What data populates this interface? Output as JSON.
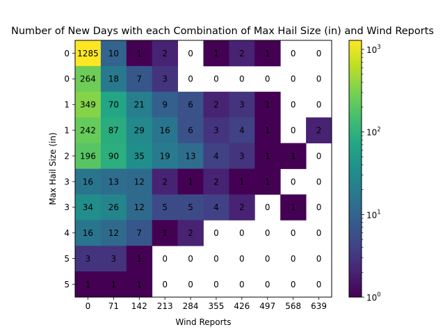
{
  "chart_data": {
    "type": "heatmap",
    "title": "Number of New Days with each Combination of Max Hail Size (in) and Wind Reports",
    "xlabel": "Wind Reports",
    "ylabel": "Max Hail Size (in)",
    "x_tick_labels": [
      "0",
      "71",
      "142",
      "213",
      "284",
      "355",
      "426",
      "497",
      "568",
      "639"
    ],
    "y_tick_labels": [
      "0",
      "0",
      "1",
      "1",
      "2",
      "3",
      "3",
      "4",
      "5",
      "5"
    ],
    "values": [
      [
        1285,
        10,
        1,
        2,
        0,
        1,
        2,
        1,
        0,
        0
      ],
      [
        264,
        18,
        7,
        3,
        0,
        0,
        0,
        0,
        0,
        0
      ],
      [
        349,
        70,
        21,
        9,
        6,
        2,
        3,
        1,
        0,
        0
      ],
      [
        242,
        87,
        29,
        16,
        6,
        3,
        4,
        1,
        0,
        2
      ],
      [
        196,
        90,
        35,
        19,
        13,
        4,
        3,
        1,
        1,
        0
      ],
      [
        16,
        13,
        12,
        2,
        1,
        2,
        1,
        1,
        0,
        0
      ],
      [
        34,
        26,
        12,
        5,
        5,
        4,
        2,
        0,
        1,
        0
      ],
      [
        16,
        12,
        7,
        1,
        2,
        0,
        0,
        0,
        0,
        0
      ],
      [
        3,
        3,
        1,
        0,
        0,
        0,
        0,
        0,
        0,
        0
      ],
      [
        1,
        1,
        1,
        0,
        0,
        0,
        0,
        0,
        0,
        0
      ]
    ],
    "zero_cells_blank": true,
    "color_scale": {
      "type": "log",
      "colormap": "viridis",
      "vmin": 1,
      "vmax": 1285,
      "tick_values": [
        1,
        10,
        100,
        1000
      ],
      "tick_labels": [
        "10",
        "10",
        "10",
        "10"
      ],
      "tick_exponents": [
        "0",
        "1",
        "2",
        "3"
      ]
    },
    "grid": false
  }
}
